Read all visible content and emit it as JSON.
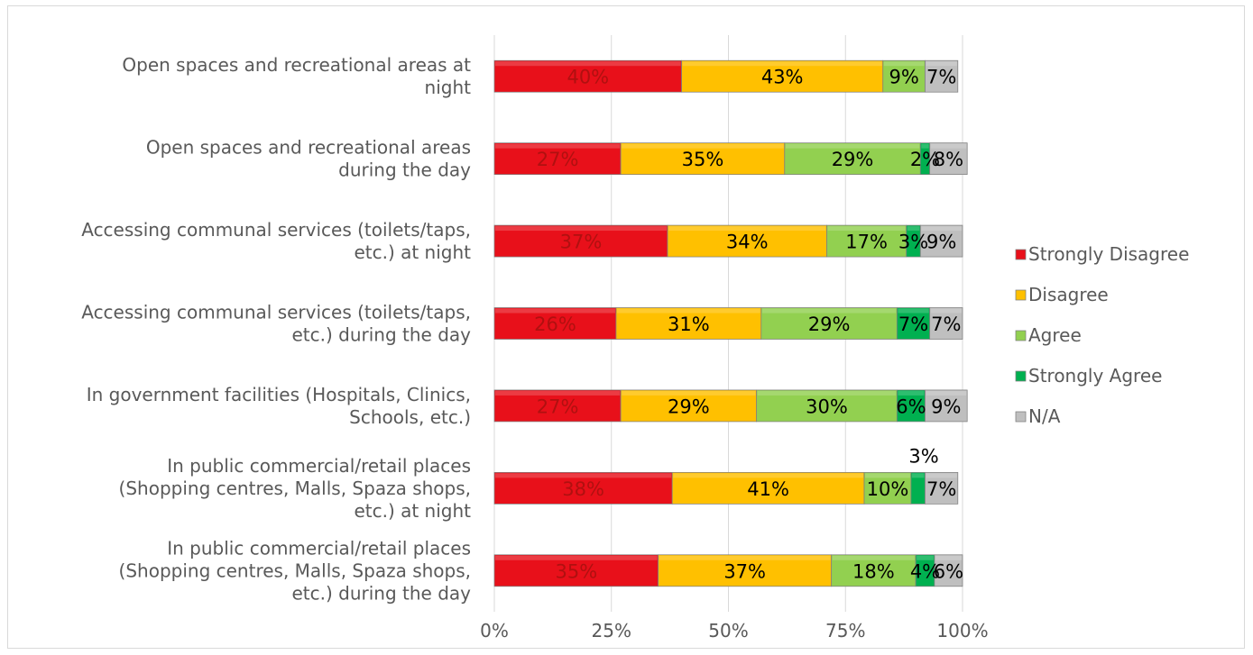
{
  "chart_data": {
    "type": "bar",
    "orientation": "horizontal",
    "stacked": "percent",
    "title": "",
    "xlabel": "",
    "ylabel": "",
    "xlim": [
      0,
      100
    ],
    "grid": "vertical",
    "legend_position": "right",
    "x_ticks": [
      "0%",
      "25%",
      "50%",
      "75%",
      "100%"
    ],
    "categories": [
      [
        "Open spaces and recreational areas at",
        "night"
      ],
      [
        "Open spaces and recreational areas",
        "during the day"
      ],
      [
        "Accessing communal services (toilets/taps,",
        "etc.) at night"
      ],
      [
        "Accessing communal services (toilets/taps,",
        "etc.) during the day"
      ],
      [
        "In government facilities (Hospitals, Clinics,",
        "Schools, etc.)"
      ],
      [
        "In public commercial/retail places",
        "(Shopping centres, Malls, Spaza shops,",
        "etc.) at night"
      ],
      [
        "In public commercial/retail places",
        "(Shopping centres, Malls, Spaza shops,",
        "etc.) during the day"
      ]
    ],
    "series": [
      {
        "name": "Strongly Disagree",
        "color": "#e8101a",
        "label_color": "#b01010",
        "values": [
          40,
          27,
          37,
          26,
          27,
          38,
          35
        ]
      },
      {
        "name": "Disagree",
        "color": "#ffc000",
        "label_color": "#000000",
        "values": [
          43,
          35,
          34,
          31,
          29,
          41,
          37
        ]
      },
      {
        "name": "Agree",
        "color": "#92d050",
        "label_color": "#000000",
        "values": [
          9,
          29,
          17,
          29,
          30,
          10,
          18
        ]
      },
      {
        "name": "Strongly Agree",
        "color": "#00b050",
        "label_color": "#000000",
        "values": [
          0,
          2,
          3,
          7,
          6,
          3,
          4
        ]
      },
      {
        "name": "N/A",
        "color": "#bfbfbf",
        "label_color": "#000000",
        "values": [
          7,
          8,
          9,
          7,
          9,
          7,
          6
        ]
      }
    ],
    "data_labels": [
      [
        "40%",
        "43%",
        "9%",
        "",
        "7%"
      ],
      [
        "27%",
        "35%",
        "29%",
        "2%",
        "8%"
      ],
      [
        "37%",
        "34%",
        "17%",
        "3%",
        "9%"
      ],
      [
        "26%",
        "31%",
        "29%",
        "7%",
        "7%"
      ],
      [
        "27%",
        "29%",
        "30%",
        "6%",
        "9%"
      ],
      [
        "38%",
        "41%",
        "10%",
        "3%",
        "7%"
      ],
      [
        "35%",
        "37%",
        "18%",
        "4%",
        "6%"
      ]
    ]
  }
}
